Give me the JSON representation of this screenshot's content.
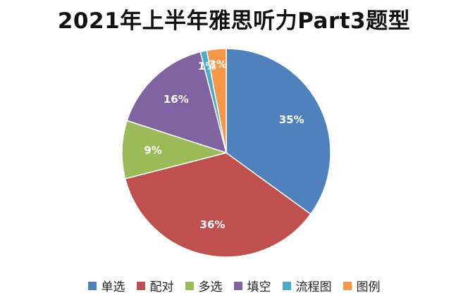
{
  "chart_data": {
    "type": "pie",
    "title": "2021年上半年雅思听力Part3题型",
    "start_angle_deg": 0,
    "direction": "clockwise",
    "slices": [
      {
        "label": "单选",
        "value": 35,
        "value_label": "35%",
        "color": "#4F81BD"
      },
      {
        "label": "配对",
        "value": 36,
        "value_label": "36%",
        "color": "#C0504D"
      },
      {
        "label": "多选",
        "value": 9,
        "value_label": "9%",
        "color": "#9BBB59"
      },
      {
        "label": "填空",
        "value": 16,
        "value_label": "16%",
        "color": "#8064A2"
      },
      {
        "label": "流程图",
        "value": 1,
        "value_label": "1%",
        "color": "#4BACC6"
      },
      {
        "label": "图例",
        "value": 3,
        "value_label": "3%",
        "color": "#F79646"
      }
    ],
    "legend_position": "bottom"
  }
}
